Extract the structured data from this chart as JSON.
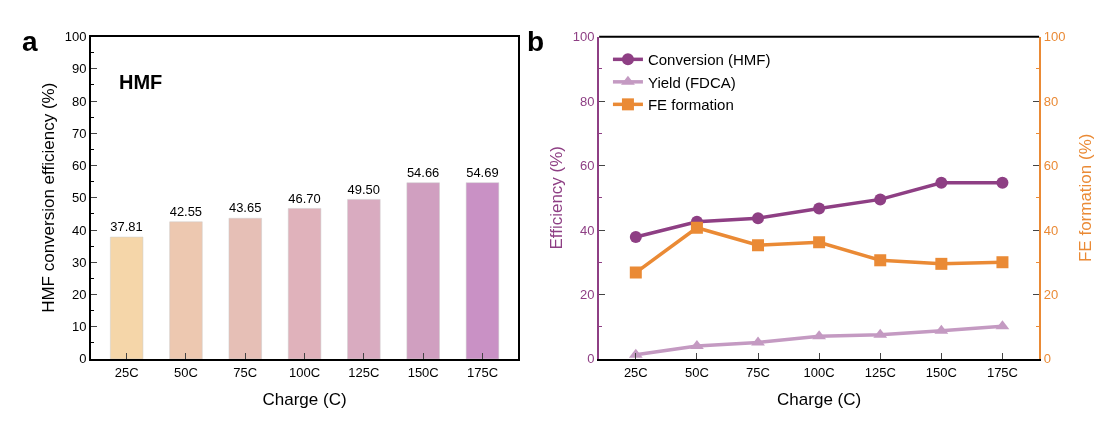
{
  "chart_data": [
    {
      "type": "bar",
      "categories": [
        "25C",
        "50C",
        "75C",
        "100C",
        "125C",
        "150C",
        "175C"
      ],
      "values": [
        37.81,
        42.55,
        43.65,
        46.7,
        49.5,
        54.66,
        54.69
      ],
      "colors": [
        "#f5d6a9",
        "#edc8b0",
        "#e6bfb6",
        "#e0b2bb",
        "#d9abc0",
        "#d09fc0",
        "#c991c5"
      ],
      "value_labels": [
        "37.81",
        "42.55",
        "43.65",
        "46.70",
        "49.50",
        "54.66",
        "54.69"
      ],
      "xlabel": "Charge (C)",
      "ylabel": "HMF conversion efficiency (%)",
      "ylim": [
        0,
        100
      ],
      "yticks": [
        0,
        10,
        20,
        30,
        40,
        50,
        60,
        70,
        80,
        90,
        100
      ],
      "annotations": [
        "a",
        "HMF"
      ]
    },
    {
      "type": "line",
      "categories": [
        "25C",
        "50C",
        "75C",
        "100C",
        "125C",
        "150C",
        "175C"
      ],
      "series": [
        {
          "name": "Conversion (HMF)",
          "color": "#8e3f84",
          "marker": "circle",
          "values": [
            37.81,
            42.55,
            43.65,
            46.7,
            49.5,
            54.66,
            54.69
          ]
        },
        {
          "name": "Yield (FDCA)",
          "color": "#c49ac2",
          "marker": "triangle",
          "values": [
            1.3,
            4.0,
            5.1,
            7.0,
            7.5,
            8.7,
            10.1
          ]
        },
        {
          "name": "FE formation",
          "color": "#ea8a35",
          "marker": "square",
          "axis": "y2",
          "values": [
            26.8,
            40.7,
            35.3,
            36.2,
            30.6,
            29.5,
            30.0
          ]
        }
      ],
      "xlabel": "Charge (C)",
      "ylabel": "Efficiency (%)",
      "y2label": "FE formation (%)",
      "ylim": [
        0,
        100
      ],
      "yticks": [
        0,
        20,
        40,
        60,
        80,
        100
      ],
      "y2lim": [
        0,
        100
      ],
      "y2ticks": [
        0,
        20,
        40,
        60,
        80,
        100
      ],
      "annotations": [
        "b"
      ],
      "legend": "top left"
    }
  ]
}
